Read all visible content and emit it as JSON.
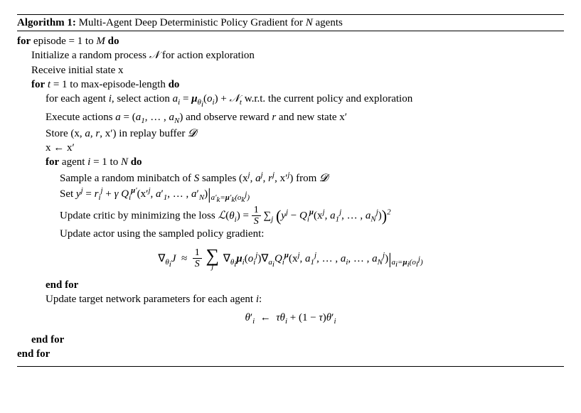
{
  "algorithm": {
    "number": "Algorithm 1:",
    "title_html": "Multi-Agent Deep Deterministic Policy Gradient for <span class='math'>N</span> agents",
    "lines": [
      {
        "indent": 0,
        "html": "<span class='kw'>for</span> episode = 1 to <span class='math'>M</span> <span class='kw'>do</span>"
      },
      {
        "indent": 1,
        "html": "Initialize a random process <span class='cal'>&#x1D4A9;</span> for action exploration"
      },
      {
        "indent": 1,
        "html": "Receive initial state <span class='rm'>x</span>"
      },
      {
        "indent": 1,
        "html": "<span class='kw'>for</span> <span class='math'>t</span> = 1 to max-episode-length <span class='kw'>do</span>"
      },
      {
        "indent": 2,
        "html": "for each agent <span class='math'>i</span>, select action <span class='math'>a<span class='sub'>i</span></span> = <span class='bold-math'>&mu;</span><span class='sub'>&theta;<span class='sub small'>i</span></span>(<span class='math'>o<span class='sub'>i</span></span>) + <span class='cal'>&#x1D4A9;</span><span class='sub'>t</span> w.r.t. the current policy and exploration"
      },
      {
        "indent": 2,
        "html": "Execute actions <span class='math'>a</span> = (<span class='math'>a</span><span class='sub'>1</span>, &hellip; , <span class='math'>a<span class='sub'>N</span></span>) and observe reward <span class='math'>r</span> and new state <span class='rm'>x</span>&prime;"
      },
      {
        "indent": 2,
        "html": "Store (<span class='rm'>x</span>, <span class='math'>a</span>, <span class='math'>r</span>, <span class='rm'>x</span>&prime;) in replay buffer <span class='cal'>&#x1D4D3;</span>"
      },
      {
        "indent": 2,
        "html": "<span class='rm'>x</span> &larr; <span class='rm'>x</span>&prime;"
      },
      {
        "indent": 2,
        "html": "<span class='kw'>for</span> agent <span class='math'>i</span> = 1 to <span class='math'>N</span> <span class='kw'>do</span>"
      },
      {
        "indent": 3,
        "html": "Sample a random minibatch of <span class='math'>S</span> samples (<span class='rm'>x</span><span class='sup'>j</span>, <span class='math'>a</span><span class='sup'>j</span>, <span class='math'>r</span><span class='sup'>j</span>, <span class='rm'>x</span>&prime;<span class='sup'>j</span>) from <span class='cal'>&#x1D4D3;</span>"
      },
      {
        "indent": 3,
        "html": "Set <span class='math'>y</span><span class='sup'>j</span> = <span class='math'>r</span><span class='sub'>i</span><span class='sup'>j</span> + <span class='math'>&gamma; Q</span><span class='sub'>i</span><span class='sup'><span class='bold-math'>&mu;</span>&prime;</span>(<span class='rm'>x</span>&prime;<span class='sup'>j</span>, <span class='math'>a</span>&prime;<span class='sub'>1</span>, &hellip; , <span class='math'>a</span>&prime;<span class='sub'>N</span>)<span class='eval'>|</span><span class='sub'><span class='math'>a</span>&prime;<span class='sub small'>k</span>=<span class='bold-math'>&mu;</span>&prime;<span class='sub small'>k</span>(o<span class='sub small'>k</span><span class='sup small'>j</span>)</span>"
      },
      {
        "indent": 3,
        "html": "Update critic by minimizing the loss <span class='cal'>&#x2112;</span>(<span class='math'>&theta;<span class='sub'>i</span></span>) = <span class='frac'><span class='num'>1</span><span class='den'><span class='math'>S</span></span></span> &sum;<span class='sub'>j</span> <span class='midparen'>(</span><span class='math'>y</span><span class='sup'>j</span> &minus; <span class='math'>Q</span><span class='sub'>i</span><span class='sup'><span class='bold-math'>&mu;</span></span>(<span class='rm'>x</span><span class='sup'>j</span>, <span class='math'>a</span><span class='sub'>1</span><span class='sup'>j</span>, &hellip; , <span class='math'>a</span><span class='sub'>N</span><span class='sup'>j</span>)<span class='midparen'>)</span><span class='sup'>2</span>"
      },
      {
        "indent": 3,
        "html": "Update actor using the sampled policy gradient:"
      }
    ],
    "eq1_html": "&nabla;<span class='sub'>&theta;<span class='sub small'>i</span></span><span class='math'>J</span> &nbsp;&asymp;&nbsp; <span class='frac'><span class='num'>1</span><span class='den'><span class='math'>S</span></span></span> <span class='bigsum'><span class='sym'>&sum;</span><span class='low'>j</span></span> &nabla;<span class='sub'>&theta;<span class='sub small'>i</span></span><span class='bold-math'>&mu;</span><span class='sub'>i</span>(<span class='math'>o</span><span class='sub'>i</span><span class='sup'>j</span>)&nabla;<span class='sub'>a<span class='sub small'>i</span></span><span class='math'>Q</span><span class='sub'>i</span><span class='sup'><span class='bold-math'>&mu;</span></span>(<span class='rm'>x</span><span class='sup'>j</span>, <span class='math'>a</span><span class='sub'>1</span><span class='sup'>j</span>, &hellip; , <span class='math'>a<span class='sub'>i</span></span>, &hellip; , <span class='math'>a</span><span class='sub'>N</span><span class='sup'>j</span>)<span class='eval'>|</span><span class='sub'><span class='math'>a<span class='sub small'>i</span></span>=<span class='bold-math'>&mu;</span><span class='sub small'>i</span>(o<span class='sub small'>i</span><span class='sup small'>j</span>)</span>",
    "after_eq_lines": [
      {
        "indent": 2,
        "html": "<span class='kw'>end for</span>"
      },
      {
        "indent": 2,
        "html": "Update target network parameters for each agent <span class='math'>i</span>:"
      }
    ],
    "eq2_html": "<span class='math'>&theta;</span>&prime;<span class='sub'>i</span> &nbsp;&larr;&nbsp; <span class='math'>&tau;&theta;<span class='sub'>i</span></span> + (1 &minus; <span class='math'>&tau;</span>)<span class='math'>&theta;</span>&prime;<span class='sub'>i</span>",
    "closing_lines": [
      {
        "indent": 1,
        "html": "<span class='kw'>end for</span>"
      },
      {
        "indent": 0,
        "html": "<span class='kw'>end for</span>"
      }
    ]
  },
  "style": {
    "font_family": "Times New Roman",
    "font_size_pt": 11,
    "text_color": "#000000",
    "background_color": "#ffffff",
    "rule_color": "#000000"
  }
}
